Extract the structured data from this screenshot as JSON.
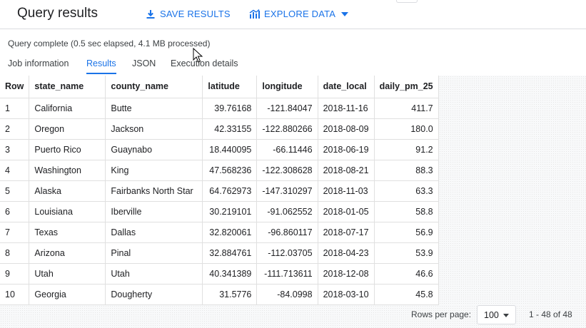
{
  "header": {
    "title": "Query results",
    "save_label": "SAVE RESULTS",
    "explore_label": "EXPLORE DATA"
  },
  "status": "Query complete (0.5 sec elapsed, 4.1 MB processed)",
  "tabs": [
    {
      "label": "Job information"
    },
    {
      "label": "Results"
    },
    {
      "label": "JSON"
    },
    {
      "label": "Execution details"
    }
  ],
  "table": {
    "columns": [
      "Row",
      "state_name",
      "county_name",
      "latitude",
      "longitude",
      "date_local",
      "daily_pm_25"
    ],
    "rows": [
      [
        "1",
        "California",
        "Butte",
        "39.76168",
        "-121.84047",
        "2018-11-16",
        "411.7"
      ],
      [
        "2",
        "Oregon",
        "Jackson",
        "42.33155",
        "-122.880266",
        "2018-08-09",
        "180.0"
      ],
      [
        "3",
        "Puerto Rico",
        "Guaynabo",
        "18.440095",
        "-66.11446",
        "2018-06-19",
        "91.2"
      ],
      [
        "4",
        "Washington",
        "King",
        "47.568236",
        "-122.308628",
        "2018-08-21",
        "88.3"
      ],
      [
        "5",
        "Alaska",
        "Fairbanks North Star",
        "64.762973",
        "-147.310297",
        "2018-11-03",
        "63.3"
      ],
      [
        "6",
        "Louisiana",
        "Iberville",
        "30.219101",
        "-91.062552",
        "2018-01-05",
        "58.8"
      ],
      [
        "7",
        "Texas",
        "Dallas",
        "32.820061",
        "-96.860117",
        "2018-07-17",
        "56.9"
      ],
      [
        "8",
        "Arizona",
        "Pinal",
        "32.884761",
        "-112.03705",
        "2018-04-23",
        "53.9"
      ],
      [
        "9",
        "Utah",
        "Utah",
        "40.341389",
        "-111.713611",
        "2018-12-08",
        "46.6"
      ],
      [
        "10",
        "Georgia",
        "Dougherty",
        "31.5776",
        "-84.0998",
        "2018-03-10",
        "45.8"
      ]
    ]
  },
  "footer": {
    "rows_per_page_label": "Rows per page:",
    "rows_per_page_value": "100",
    "range": "1 - 48 of 48"
  },
  "colors": {
    "accent": "#1a73e8"
  }
}
